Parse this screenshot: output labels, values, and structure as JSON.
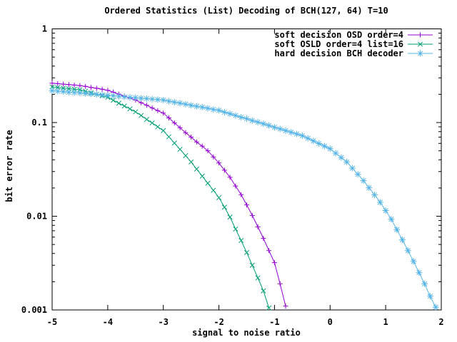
{
  "title": "Ordered Statistics (List) Decoding of BCH(127, 64) T=10",
  "colors": {
    "background": "#ffffff",
    "axis": "#000000",
    "text": "#000000",
    "series_purple": "#9400d3",
    "series_green": "#009e73",
    "series_blue": "#56b4e9"
  },
  "chart_data": {
    "type": "line",
    "title": "Ordered Statistics (List) Decoding of BCH(127, 64) T=10",
    "xlabel": "signal to noise ratio",
    "ylabel": "bit error rate",
    "x_range": [
      -5,
      2
    ],
    "y_range": [
      0.001,
      1
    ],
    "y_scale": "log10",
    "grid": false,
    "legend_position": "top-right-inside",
    "x_ticks": [
      -5,
      -4,
      -3,
      -2,
      -1,
      0,
      1,
      2
    ],
    "x_tick_labels": [
      "-5",
      "-4",
      "-3",
      "-2",
      "-1",
      "0",
      "1",
      "2"
    ],
    "y_ticks": [
      1,
      0.1,
      0.01,
      0.001
    ],
    "y_tick_labels": [
      "1",
      "0.1",
      "0.01",
      "0.001"
    ],
    "series": [
      {
        "name": "soft decision OSD order=4",
        "color": "#9400d3",
        "marker": "plus",
        "x": [
          -5,
          -4.9,
          -4.8,
          -4.7,
          -4.6,
          -4.5,
          -4.4,
          -4.3,
          -4.2,
          -4.1,
          -4,
          -3.9,
          -3.8,
          -3.7,
          -3.6,
          -3.5,
          -3.4,
          -3.3,
          -3.2,
          -3.1,
          -3,
          -2.9,
          -2.8,
          -2.7,
          -2.6,
          -2.5,
          -2.4,
          -2.3,
          -2.2,
          -2.1,
          -2,
          -1.9,
          -1.8,
          -1.7,
          -1.6,
          -1.5,
          -1.4,
          -1.3,
          -1.2,
          -1.1,
          -1,
          -0.9,
          -0.8
        ],
        "y": [
          0.263,
          0.26,
          0.257,
          0.254,
          0.251,
          0.248,
          0.243,
          0.237,
          0.232,
          0.227,
          0.221,
          0.211,
          0.201,
          0.191,
          0.182,
          0.174,
          0.163,
          0.153,
          0.143,
          0.134,
          0.126,
          0.112,
          0.099,
          0.088,
          0.078,
          0.07,
          0.062,
          0.056,
          0.05,
          0.043,
          0.037,
          0.031,
          0.026,
          0.021,
          0.017,
          0.0132,
          0.0102,
          0.0077,
          0.0058,
          0.0043,
          0.0032,
          0.0019,
          0.0011
        ]
      },
      {
        "name": "soft OSLD order=4 list=16",
        "color": "#009e73",
        "marker": "cross",
        "x": [
          -5,
          -4.9,
          -4.8,
          -4.7,
          -4.6,
          -4.5,
          -4.4,
          -4.3,
          -4.2,
          -4.1,
          -4,
          -3.9,
          -3.8,
          -3.7,
          -3.6,
          -3.5,
          -3.4,
          -3.3,
          -3.2,
          -3.1,
          -3,
          -2.9,
          -2.8,
          -2.7,
          -2.6,
          -2.5,
          -2.4,
          -2.3,
          -2.2,
          -2.1,
          -2,
          -1.9,
          -1.8,
          -1.7,
          -1.6,
          -1.5,
          -1.4,
          -1.3,
          -1.2,
          -1.1
        ],
        "y": [
          0.24,
          0.237,
          0.233,
          0.23,
          0.227,
          0.224,
          0.216,
          0.208,
          0.2,
          0.193,
          0.186,
          0.173,
          0.161,
          0.15,
          0.14,
          0.13,
          0.119,
          0.108,
          0.099,
          0.09,
          0.082,
          0.0705,
          0.0604,
          0.0518,
          0.0444,
          0.038,
          0.0319,
          0.0268,
          0.0225,
          0.0189,
          0.0158,
          0.0125,
          0.0098,
          0.0073,
          0.0055,
          0.0041,
          0.003,
          0.0022,
          0.0016,
          0.00105
        ]
      },
      {
        "name": "hard decision BCH decoder",
        "color": "#56b4e9",
        "marker": "star",
        "x": [
          -5,
          -4.9,
          -4.8,
          -4.7,
          -4.6,
          -4.5,
          -4.4,
          -4.3,
          -4.2,
          -4.1,
          -4,
          -3.9,
          -3.8,
          -3.7,
          -3.6,
          -3.5,
          -3.4,
          -3.3,
          -3.2,
          -3.1,
          -3,
          -2.9,
          -2.8,
          -2.7,
          -2.6,
          -2.5,
          -2.4,
          -2.3,
          -2.2,
          -2.1,
          -2,
          -1.9,
          -1.8,
          -1.7,
          -1.6,
          -1.5,
          -1.4,
          -1.3,
          -1.2,
          -1.1,
          -1,
          -0.9,
          -0.8,
          -0.7,
          -0.6,
          -0.5,
          -0.4,
          -0.3,
          -0.2,
          -0.1,
          0,
          0.1,
          0.2,
          0.3,
          0.4,
          0.5,
          0.6,
          0.7,
          0.8,
          0.9,
          1,
          1.1,
          1.2,
          1.3,
          1.4,
          1.5,
          1.6,
          1.7,
          1.8,
          1.9
        ],
        "y": [
          0.219,
          0.216,
          0.214,
          0.211,
          0.209,
          0.207,
          0.204,
          0.202,
          0.2,
          0.197,
          0.195,
          0.193,
          0.191,
          0.188,
          0.186,
          0.184,
          0.182,
          0.18,
          0.178,
          0.176,
          0.174,
          0.169,
          0.165,
          0.161,
          0.157,
          0.153,
          0.149,
          0.146,
          0.142,
          0.138,
          0.135,
          0.129,
          0.124,
          0.119,
          0.114,
          0.11,
          0.105,
          0.101,
          0.097,
          0.093,
          0.089,
          0.0855,
          0.082,
          0.0787,
          0.0755,
          0.0724,
          0.0679,
          0.0637,
          0.0597,
          0.056,
          0.0525,
          0.0471,
          0.0423,
          0.038,
          0.0326,
          0.028,
          0.024,
          0.0201,
          0.0169,
          0.0141,
          0.0115,
          0.0093,
          0.0072,
          0.0056,
          0.0043,
          0.0033,
          0.0025,
          0.0019,
          0.0014,
          0.00107
        ]
      }
    ]
  }
}
